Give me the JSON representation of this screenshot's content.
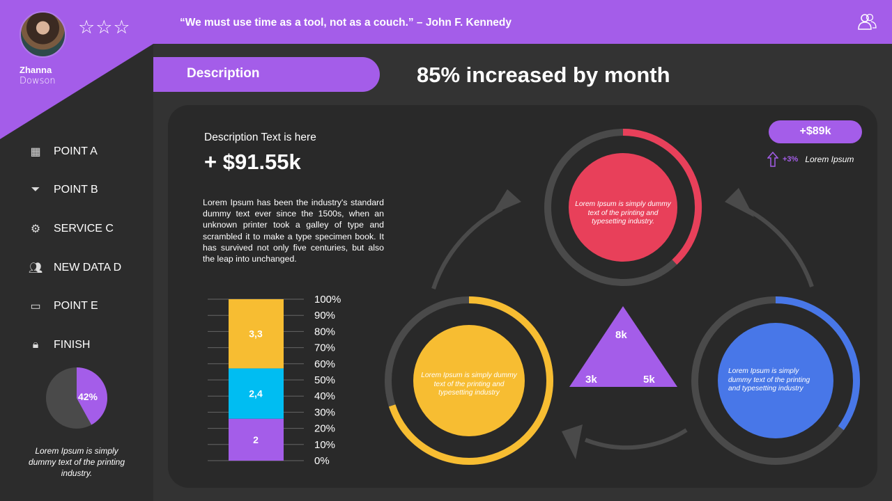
{
  "profile": {
    "first_name": "Zhanna",
    "last_name": "Dowson",
    "rating_stars": "☆☆☆"
  },
  "sidebar": {
    "items": [
      {
        "label": "POINT A",
        "icon": "calendar-icon"
      },
      {
        "label": "POINT B",
        "icon": "funnel-icon"
      },
      {
        "label": "SERVICE C",
        "icon": "gear-icon"
      },
      {
        "label": "NEW DATA D",
        "icon": "users-icon"
      },
      {
        "label": "POINT E",
        "icon": "briefcase-icon"
      },
      {
        "label": "FINISH",
        "icon": "lock-icon"
      }
    ],
    "pie_label": "42%",
    "pie_caption": "Lorem Ipsum is simply dummy text of the printing industry."
  },
  "header": {
    "quote": "“We must use time as a tool, not as a couch.”  – John F. Kennedy"
  },
  "description_label": "Description",
  "headline": "85% increased by month",
  "main": {
    "desc_title": "Description Text is here",
    "amount": "+ $91.55k",
    "body": "Lorem Ipsum has been the industry's standard dummy text ever since the 1500s, when an unknown printer took a galley of type and scrambled it to make a type specimen book. It has survived not only five centuries, but also the leap into unchanged.",
    "badge": "+$89k",
    "trend_pct": "+3%",
    "trend_label": "Lorem Ipsum",
    "circles": [
      {
        "text": "Lorem Ipsum is simply dummy text of the printing and typesetting industry.",
        "color": "#e8405a",
        "progress": 0.38
      },
      {
        "text": "Lorem Ipsum is simply dummy text of the printing and typesetting industry",
        "color": "#f7bd32",
        "progress": 0.7
      },
      {
        "text": "Lorem Ipsum is simply dummy text of the printing and typesetting industry",
        "color": "#4877e8",
        "progress": 0.35
      }
    ],
    "triangle": {
      "top": "8k",
      "left": "3k",
      "right": "5k",
      "color": "#a45de9"
    }
  },
  "chart_data": [
    {
      "type": "bar",
      "stacked": true,
      "ticks": [
        "0%",
        "10%",
        "20%",
        "30%",
        "40%",
        "50%",
        "60%",
        "70%",
        "80%",
        "90%",
        "100%"
      ],
      "ylim": [
        0,
        100
      ],
      "series": [
        {
          "label": "2",
          "value": 2,
          "color": "#a45de9"
        },
        {
          "label": "2,4",
          "value": 2.4,
          "color": "#00bdf2"
        },
        {
          "label": "3,3",
          "value": 3.3,
          "color": "#f7bd32"
        }
      ]
    },
    {
      "type": "pie",
      "values": [
        42,
        58
      ],
      "colors": [
        "#a45de9",
        "#4a4a4a"
      ],
      "label": "42%"
    }
  ]
}
